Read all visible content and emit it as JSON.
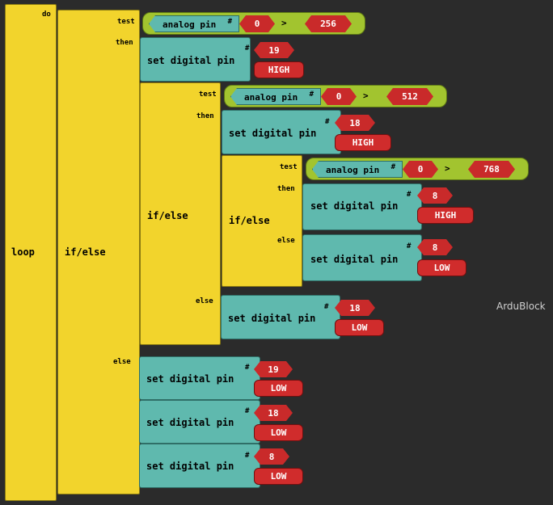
{
  "app": {
    "watermark": "ArduBlock"
  },
  "labels": {
    "loop": "loop",
    "do": "do",
    "ifelse": "if/else",
    "test": "test",
    "then": "then",
    "else": "else",
    "set_digital_pin": "set digital pin",
    "analog_pin": "analog pin",
    "hash": "#",
    "gt": ">"
  },
  "conditions": [
    {
      "pin": "0",
      "op": ">",
      "value": "256"
    },
    {
      "pin": "0",
      "op": ">",
      "value": "512"
    },
    {
      "pin": "0",
      "op": ">",
      "value": "768"
    }
  ],
  "set_blocks": [
    {
      "pin": "19",
      "state": "HIGH"
    },
    {
      "pin": "18",
      "state": "HIGH"
    },
    {
      "pin": "8",
      "state": "HIGH"
    },
    {
      "pin": "8",
      "state": "LOW"
    },
    {
      "pin": "18",
      "state": "LOW"
    },
    {
      "pin": "19",
      "state": "LOW"
    },
    {
      "pin": "18",
      "state": "LOW"
    },
    {
      "pin": "8",
      "state": "LOW"
    }
  ],
  "colors": {
    "control": "#f2d42c",
    "command": "#5fb9ae",
    "number": "#c92a2a",
    "boolean": "#a2c42f",
    "background": "#2b2b2b"
  }
}
